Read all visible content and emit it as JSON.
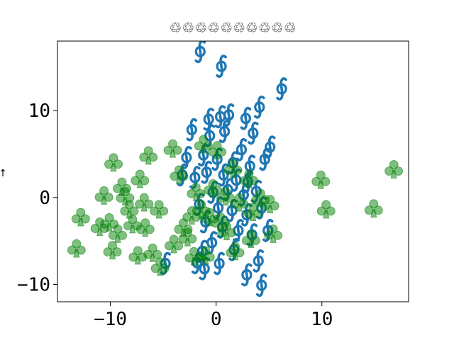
{
  "chart_data": {
    "type": "scatter",
    "title": "♲♲♲♲♲♲♲♲♲♲",
    "xlabel": "",
    "ylabel": "↑",
    "xlim": [
      -15,
      18.2
    ],
    "ylim": [
      -12,
      18
    ],
    "xticks": [
      -10,
      0,
      10
    ],
    "yticks": [
      -10,
      0,
      10
    ],
    "xtick_labels": [
      "−10",
      "0",
      "10"
    ],
    "ytick_labels": [
      "−10",
      "0",
      "10"
    ],
    "grid": false,
    "series": [
      {
        "marker": "integral-dollar",
        "color": "#1f77b4",
        "points": [
          [
            -1.5,
            16.8
          ],
          [
            0.5,
            15.1
          ],
          [
            6.2,
            12.5
          ],
          [
            4.1,
            10.4
          ],
          [
            -0.7,
            9.0
          ],
          [
            0.4,
            9.3
          ],
          [
            1.2,
            9.5
          ],
          [
            2.8,
            9.1
          ],
          [
            3.5,
            7.4
          ],
          [
            -2.3,
            7.8
          ],
          [
            -0.6,
            7.1
          ],
          [
            0.8,
            7.6
          ],
          [
            2.4,
            5.5
          ],
          [
            5.1,
            5.8
          ],
          [
            -2.8,
            4.6
          ],
          [
            -1.2,
            4.9
          ],
          [
            0.1,
            4.4
          ],
          [
            1.6,
            4.0
          ],
          [
            3.2,
            3.6
          ],
          [
            4.6,
            4.4
          ],
          [
            -2.0,
            2.3
          ],
          [
            -0.9,
            2.9
          ],
          [
            0.7,
            2.6
          ],
          [
            1.9,
            2.0
          ],
          [
            3.0,
            1.8
          ],
          [
            -3.2,
            2.6
          ],
          [
            -0.3,
            0.6
          ],
          [
            1.1,
            0.9
          ],
          [
            2.6,
            0.3
          ],
          [
            3.8,
            0.7
          ],
          [
            -1.6,
            -0.8
          ],
          [
            0.2,
            -1.2
          ],
          [
            1.5,
            -1.5
          ],
          [
            2.9,
            -2.0
          ],
          [
            4.3,
            -1.2
          ],
          [
            -1.0,
            -2.8
          ],
          [
            0.6,
            -3.4
          ],
          [
            2.1,
            -3.8
          ],
          [
            3.4,
            -4.3
          ],
          [
            4.9,
            -3.8
          ],
          [
            -0.4,
            -5.2
          ],
          [
            1.7,
            -6.0
          ],
          [
            -1.3,
            -6.2
          ],
          [
            0.3,
            -7.6
          ],
          [
            -1.8,
            -7.5
          ],
          [
            4.0,
            -7.3
          ],
          [
            -4.8,
            -7.6
          ],
          [
            2.9,
            -8.9
          ],
          [
            4.3,
            -10.1
          ],
          [
            -1.1,
            -8.2
          ]
        ]
      },
      {
        "marker": "club",
        "color": "#008000",
        "points": [
          [
            -9.7,
            4.0
          ],
          [
            -6.4,
            4.8
          ],
          [
            -4.1,
            5.6
          ],
          [
            -7.2,
            2.1
          ],
          [
            -8.9,
            1.2
          ],
          [
            -10.6,
            0.2
          ],
          [
            -12.8,
            -2.3
          ],
          [
            -10.1,
            -2.9
          ],
          [
            -8.2,
            -1.4
          ],
          [
            -6.8,
            -0.6
          ],
          [
            -5.4,
            -1.4
          ],
          [
            -7.9,
            -3.1
          ],
          [
            -9.3,
            -4.2
          ],
          [
            -11.0,
            -3.4
          ],
          [
            -13.2,
            -5.9
          ],
          [
            -9.8,
            -6.1
          ],
          [
            -6.0,
            -6.4
          ],
          [
            -5.3,
            -8.0
          ],
          [
            -7.4,
            -6.7
          ],
          [
            -4.0,
            -5.4
          ],
          [
            -3.1,
            -3.5
          ],
          [
            -2.3,
            -2.1
          ],
          [
            -1.4,
            -1.4
          ],
          [
            -0.6,
            -2.3
          ],
          [
            0.4,
            -2.8
          ],
          [
            -1.9,
            0.6
          ],
          [
            -0.3,
            1.0
          ],
          [
            0.9,
            0.1
          ],
          [
            2.2,
            -0.6
          ],
          [
            3.5,
            -1.7
          ],
          [
            -3.5,
            2.6
          ],
          [
            -1.2,
            6.1
          ],
          [
            0.1,
            5.4
          ],
          [
            1.6,
            3.3
          ],
          [
            3.1,
            2.1
          ],
          [
            -2.7,
            -4.6
          ],
          [
            -1.0,
            -6.7
          ],
          [
            1.8,
            -6.2
          ],
          [
            3.3,
            -4.8
          ],
          [
            5.4,
            -4.2
          ],
          [
            4.2,
            -0.1
          ],
          [
            5.1,
            -0.8
          ],
          [
            9.9,
            2.0
          ],
          [
            10.4,
            -1.4
          ],
          [
            14.9,
            -1.3
          ],
          [
            16.8,
            3.2
          ],
          [
            -6.7,
            -3.5
          ],
          [
            -8.6,
            0.1
          ],
          [
            -2.1,
            -6.8
          ],
          [
            1.0,
            -3.9
          ]
        ]
      }
    ]
  }
}
